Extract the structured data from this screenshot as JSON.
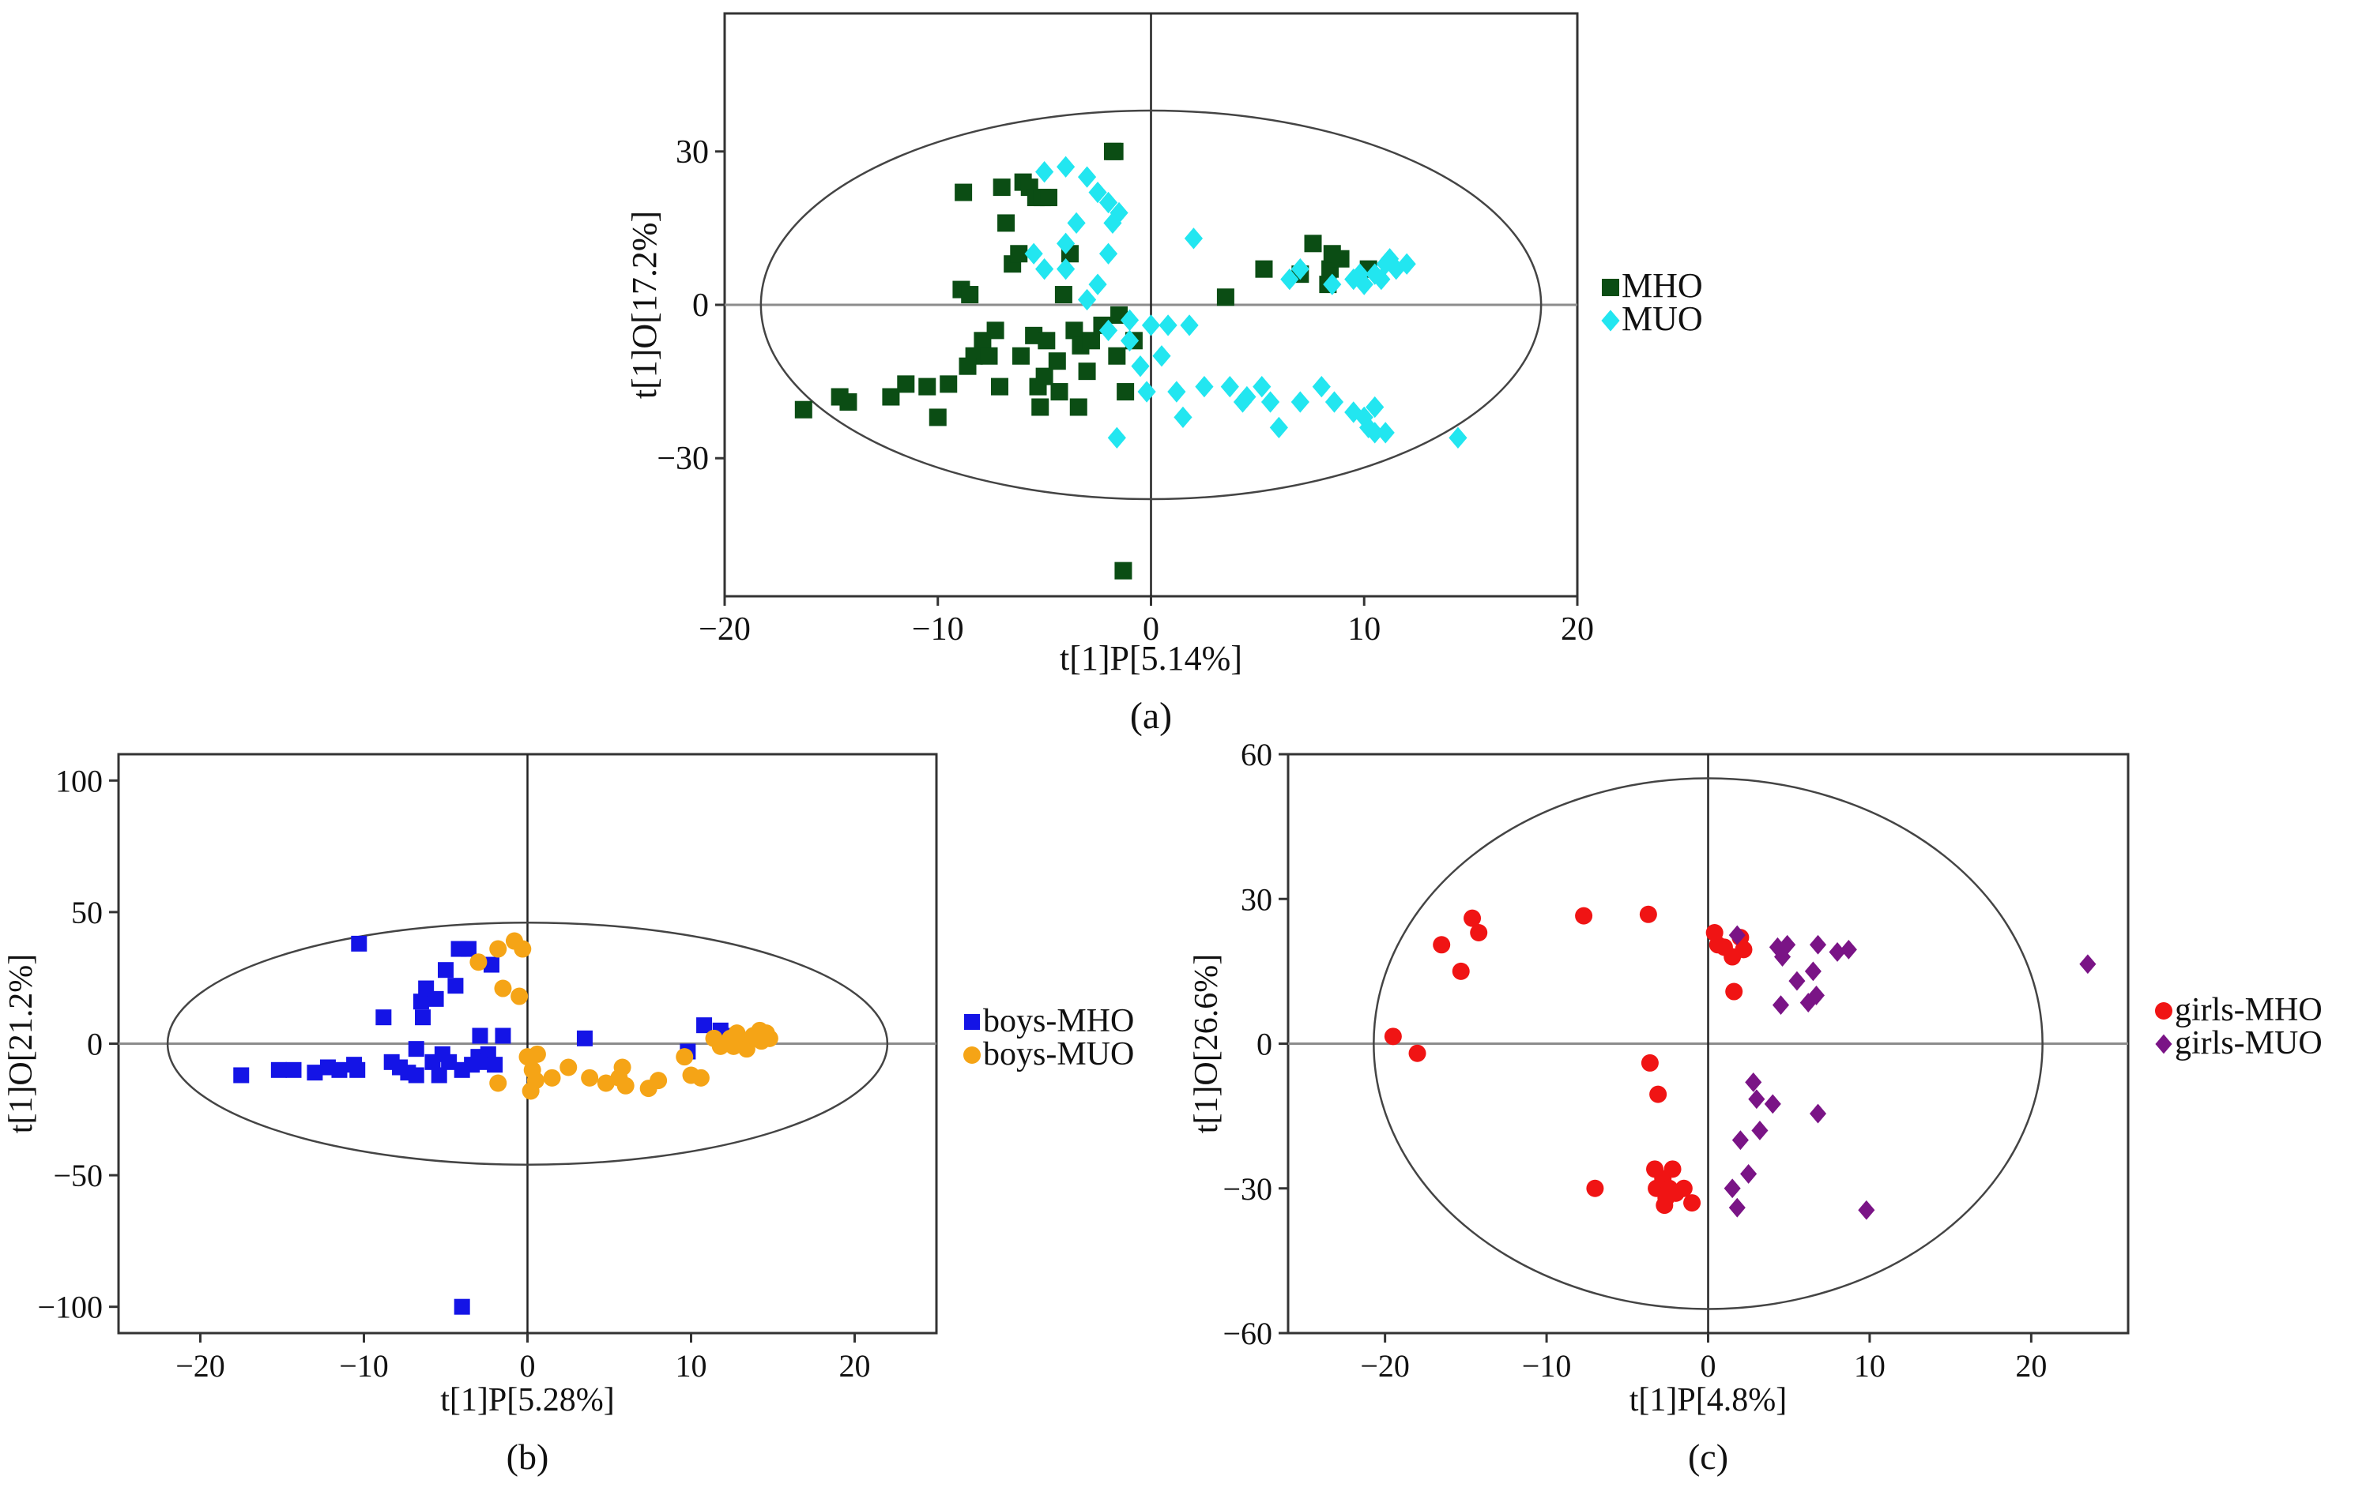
{
  "colors": {
    "mho_a": "#0b4d14",
    "muo_a": "#22e6f0",
    "mho_b": "#1414e6",
    "muo_b": "#f5a416",
    "mho_c": "#f01414",
    "muo_c": "#7a1486",
    "axis": "#333333",
    "refline": "#8c8c8c"
  },
  "chart_data": [
    {
      "panel": "(a)",
      "type": "scatter",
      "xlabel": "t[1]P[5.14%]",
      "ylabel": "t[1]O[17.2%]",
      "xlim": [
        -20,
        20
      ],
      "ylim": [
        -57,
        57
      ],
      "xticks": [
        -20,
        -10,
        0,
        10,
        20
      ],
      "yticks": [
        -30,
        0,
        30
      ],
      "xtick_labels": [
        "−20",
        "−10",
        "0",
        "10",
        "20"
      ],
      "ytick_labels": [
        "−30",
        "0",
        "30"
      ],
      "ellipse": {
        "rx": 18.3,
        "ry": 38
      },
      "series": [
        {
          "name": "MHO",
          "marker": "square",
          "color_key": "mho_a",
          "points": [
            [
              -16.3,
              -20.5
            ],
            [
              -14.6,
              -18
            ],
            [
              -14.2,
              -19
            ],
            [
              -12.2,
              -18
            ],
            [
              -11.5,
              -15.5
            ],
            [
              -10.5,
              -16
            ],
            [
              -10,
              -22
            ],
            [
              -9.5,
              -15.5
            ],
            [
              -8.3,
              -10
            ],
            [
              -8.6,
              -12
            ],
            [
              -8.8,
              22
            ],
            [
              -8.9,
              3
            ],
            [
              -8.5,
              2
            ],
            [
              -7.9,
              -7
            ],
            [
              -7.6,
              -10
            ],
            [
              -7.3,
              -5
            ],
            [
              -7.1,
              -16
            ],
            [
              -7.0,
              23
            ],
            [
              -6.8,
              16
            ],
            [
              -6.5,
              8
            ],
            [
              -6.1,
              -10
            ],
            [
              -6.2,
              10
            ],
            [
              -6.0,
              24
            ],
            [
              -5.7,
              23
            ],
            [
              -5.4,
              21
            ],
            [
              -5.1,
              21
            ],
            [
              -4.8,
              21
            ],
            [
              -5.5,
              -6
            ],
            [
              -5.3,
              -16
            ],
            [
              -5.2,
              -20
            ],
            [
              -5.0,
              -14
            ],
            [
              -4.9,
              -7
            ],
            [
              -4.4,
              -11
            ],
            [
              -4.3,
              -17
            ],
            [
              -4.1,
              2
            ],
            [
              -3.8,
              10
            ],
            [
              -3.6,
              -5
            ],
            [
              -3.4,
              -20
            ],
            [
              -3.3,
              -8
            ],
            [
              -3.0,
              -13
            ],
            [
              -2.8,
              -7
            ],
            [
              -2.3,
              -4
            ],
            [
              -1.8,
              30
            ],
            [
              -1.7,
              30
            ],
            [
              -1.6,
              -10
            ],
            [
              -1.5,
              -2
            ],
            [
              -1.2,
              -17
            ],
            [
              -1.3,
              -52
            ],
            [
              -0.8,
              -7
            ],
            [
              3.5,
              1.5
            ],
            [
              5.3,
              7
            ],
            [
              7.6,
              12
            ],
            [
              7.0,
              6
            ],
            [
              8.3,
              4
            ],
            [
              8.4,
              7
            ],
            [
              8.5,
              10
            ],
            [
              8.9,
              9
            ],
            [
              10.2,
              7
            ]
          ]
        },
        {
          "name": "MUO",
          "marker": "diamond",
          "color_key": "muo_a",
          "points": [
            [
              -5,
              26
            ],
            [
              -4,
              27
            ],
            [
              -3,
              25
            ],
            [
              -2.5,
              22
            ],
            [
              -2,
              20
            ],
            [
              -1.5,
              18
            ],
            [
              -1.8,
              16
            ],
            [
              -3.5,
              16
            ],
            [
              -4,
              12
            ],
            [
              -5.5,
              10
            ],
            [
              -5,
              7
            ],
            [
              -4,
              7
            ],
            [
              -2,
              10
            ],
            [
              -2.5,
              4
            ],
            [
              -3,
              1
            ],
            [
              -2,
              -5
            ],
            [
              -1,
              -3
            ],
            [
              -1,
              -7
            ],
            [
              -0.5,
              -12
            ],
            [
              -0.2,
              -17
            ],
            [
              0,
              -4
            ],
            [
              0.8,
              -4
            ],
            [
              1.8,
              -4
            ],
            [
              2,
              13
            ],
            [
              0.5,
              -10
            ],
            [
              1.2,
              -17
            ],
            [
              2.5,
              -16
            ],
            [
              3.7,
              -16
            ],
            [
              4.5,
              -18
            ],
            [
              5.2,
              -16
            ],
            [
              4.3,
              -19
            ],
            [
              6.0,
              -24
            ],
            [
              5.6,
              -19
            ],
            [
              7.0,
              -19
            ],
            [
              8.0,
              -16
            ],
            [
              8.6,
              -19
            ],
            [
              9.5,
              -21
            ],
            [
              10,
              -22
            ],
            [
              10.5,
              -20
            ],
            [
              10.2,
              -24
            ],
            [
              10.5,
              -25
            ],
            [
              11,
              -25
            ],
            [
              -1.6,
              -26
            ],
            [
              1.5,
              -22
            ],
            [
              14.4,
              -26
            ],
            [
              6.5,
              5
            ],
            [
              7,
              7
            ],
            [
              8.5,
              4
            ],
            [
              9.5,
              5
            ],
            [
              10,
              4
            ],
            [
              10.5,
              6
            ],
            [
              11,
              8
            ],
            [
              11.5,
              7
            ],
            [
              12,
              8
            ],
            [
              10.8,
              5
            ],
            [
              11.2,
              9
            ],
            [
              9.8,
              6
            ]
          ]
        }
      ],
      "legend": [
        "MHO",
        "MUO"
      ],
      "legend_position": "right"
    },
    {
      "panel": "(b)",
      "type": "scatter",
      "xlabel": "t[1]P[5.28%]",
      "ylabel": "t[1]O[21.2%]",
      "xlim": [
        -25,
        25
      ],
      "ylim": [
        -110,
        110
      ],
      "xticks": [
        -20,
        -10,
        0,
        10,
        20
      ],
      "yticks": [
        -100,
        -50,
        0,
        50,
        100
      ],
      "xtick_labels": [
        "−20",
        "−10",
        "0",
        "10",
        "20"
      ],
      "ytick_labels": [
        "−100",
        "−50",
        "0",
        "50",
        "100"
      ],
      "ellipse": {
        "rx": 22,
        "ry": 46
      },
      "series": [
        {
          "name": "boys-MHO",
          "marker": "square",
          "color_key": "mho_b",
          "points": [
            [
              -17.5,
              -12
            ],
            [
              -15.2,
              -10
            ],
            [
              -14.3,
              -10
            ],
            [
              -13,
              -11
            ],
            [
              -12.2,
              -9
            ],
            [
              -11.5,
              -10
            ],
            [
              -10.6,
              -8
            ],
            [
              -10.4,
              -10
            ],
            [
              -10.3,
              38
            ],
            [
              -8.8,
              10
            ],
            [
              -8.3,
              -7
            ],
            [
              -7.8,
              -9
            ],
            [
              -7.3,
              -11
            ],
            [
              -6.8,
              -2
            ],
            [
              -6.8,
              -12
            ],
            [
              -6.5,
              16
            ],
            [
              -6.4,
              10
            ],
            [
              -6.2,
              21
            ],
            [
              -5.8,
              -7
            ],
            [
              -5.6,
              17
            ],
            [
              -5.4,
              -12
            ],
            [
              -5.2,
              -4
            ],
            [
              -5.0,
              28
            ],
            [
              -4.8,
              -7
            ],
            [
              -4.4,
              22
            ],
            [
              -4.2,
              36
            ],
            [
              -4.0,
              -10
            ],
            [
              -3.6,
              36
            ],
            [
              -3.4,
              -8
            ],
            [
              -3.0,
              -5
            ],
            [
              -2.9,
              3
            ],
            [
              -2.6,
              -7
            ],
            [
              -2.4,
              -4
            ],
            [
              -2.2,
              30
            ],
            [
              -2.0,
              -8
            ],
            [
              -1.5,
              3
            ],
            [
              -4,
              -100
            ],
            [
              3.5,
              2
            ],
            [
              9.8,
              -3
            ],
            [
              10.8,
              7
            ],
            [
              11.8,
              5
            ],
            [
              12.2,
              3
            ]
          ]
        },
        {
          "name": "boys-MUO",
          "marker": "circle",
          "color_key": "muo_b",
          "points": [
            [
              -3,
              31
            ],
            [
              -1.8,
              36
            ],
            [
              -1.5,
              21
            ],
            [
              -0.8,
              39
            ],
            [
              -0.3,
              36
            ],
            [
              -0.5,
              18
            ],
            [
              -1.8,
              -15
            ],
            [
              0,
              -5
            ],
            [
              0.2,
              -18
            ],
            [
              0.3,
              -10
            ],
            [
              0.5,
              -14
            ],
            [
              0.6,
              -4
            ],
            [
              1.5,
              -13
            ],
            [
              2.5,
              -9
            ],
            [
              3.8,
              -13
            ],
            [
              4.8,
              -15
            ],
            [
              5.6,
              -13
            ],
            [
              5.8,
              -9
            ],
            [
              6.0,
              -16
            ],
            [
              7.4,
              -17
            ],
            [
              8,
              -14
            ],
            [
              9.6,
              -5
            ],
            [
              10,
              -12
            ],
            [
              10.6,
              -13
            ],
            [
              11.4,
              2
            ],
            [
              11.8,
              -1
            ],
            [
              12.4,
              2
            ],
            [
              12.6,
              -1
            ],
            [
              13.2,
              1
            ],
            [
              13.4,
              -2
            ],
            [
              13.8,
              3
            ],
            [
              14.2,
              5
            ],
            [
              14.6,
              4
            ],
            [
              14.8,
              2
            ],
            [
              14.3,
              1
            ],
            [
              12.8,
              4
            ]
          ]
        }
      ],
      "legend": [
        "boys-MHO",
        "boys-MUO"
      ],
      "legend_position": "right"
    },
    {
      "panel": "(c)",
      "type": "scatter",
      "xlabel": "t[1]P[4.8%]",
      "ylabel": "t[1]O[26.6%]",
      "xlim": [
        -26,
        26
      ],
      "ylim": [
        -60,
        60
      ],
      "xticks": [
        -20,
        -10,
        0,
        10,
        20
      ],
      "yticks": [
        -60,
        -30,
        0,
        30,
        60
      ],
      "xtick_labels": [
        "−20",
        "−10",
        "0",
        "10",
        "20"
      ],
      "ytick_labels": [
        "−60",
        "−30",
        "0",
        "30",
        "60"
      ],
      "ellipse": {
        "rx": 20.7,
        "ry": 55
      },
      "series": [
        {
          "name": "girls-MHO",
          "marker": "circle",
          "color_key": "mho_c",
          "points": [
            [
              -19.5,
              1.5
            ],
            [
              -18,
              -2
            ],
            [
              -16.5,
              20.5
            ],
            [
              -15.3,
              15
            ],
            [
              -14.6,
              26
            ],
            [
              -14.2,
              23
            ],
            [
              -7.7,
              26.5
            ],
            [
              -7.0,
              -30
            ],
            [
              -3.7,
              26.8
            ],
            [
              -3.6,
              -4
            ],
            [
              -3.1,
              -10.5
            ],
            [
              -3.3,
              -26
            ],
            [
              -3.2,
              -30
            ],
            [
              -2.8,
              -28
            ],
            [
              -2.7,
              -33.5
            ],
            [
              -2.6,
              -32
            ],
            [
              -2.4,
              -30
            ],
            [
              -2.2,
              -26
            ],
            [
              -2.0,
              -31
            ],
            [
              -1.5,
              -30
            ],
            [
              -1.0,
              -33
            ],
            [
              0.4,
              23
            ],
            [
              0.6,
              20.5
            ],
            [
              1.0,
              20
            ],
            [
              1.5,
              18
            ],
            [
              1.6,
              10.8
            ],
            [
              2.0,
              22
            ],
            [
              2.2,
              19.5
            ]
          ]
        },
        {
          "name": "girls-MUO",
          "marker": "diamond",
          "color_key": "muo_c",
          "points": [
            [
              1.8,
              22.5
            ],
            [
              4.3,
              20
            ],
            [
              4.6,
              18
            ],
            [
              4.9,
              20.5
            ],
            [
              4.5,
              8
            ],
            [
              5.5,
              13
            ],
            [
              6.2,
              8.5
            ],
            [
              6.5,
              15
            ],
            [
              6.7,
              10
            ],
            [
              6.8,
              20.5
            ],
            [
              8.0,
              19
            ],
            [
              8.7,
              19.5
            ],
            [
              2.8,
              -8
            ],
            [
              3.0,
              -11.5
            ],
            [
              3.2,
              -18
            ],
            [
              4.0,
              -12.5
            ],
            [
              2.5,
              -27
            ],
            [
              2.0,
              -20
            ],
            [
              1.5,
              -30
            ],
            [
              1.8,
              -34
            ],
            [
              6.8,
              -14.5
            ],
            [
              9.8,
              -34.5
            ],
            [
              23.5,
              16.5
            ]
          ]
        }
      ],
      "legend": [
        "girls-MHO",
        "girls-MUO"
      ],
      "legend_position": "right"
    }
  ]
}
